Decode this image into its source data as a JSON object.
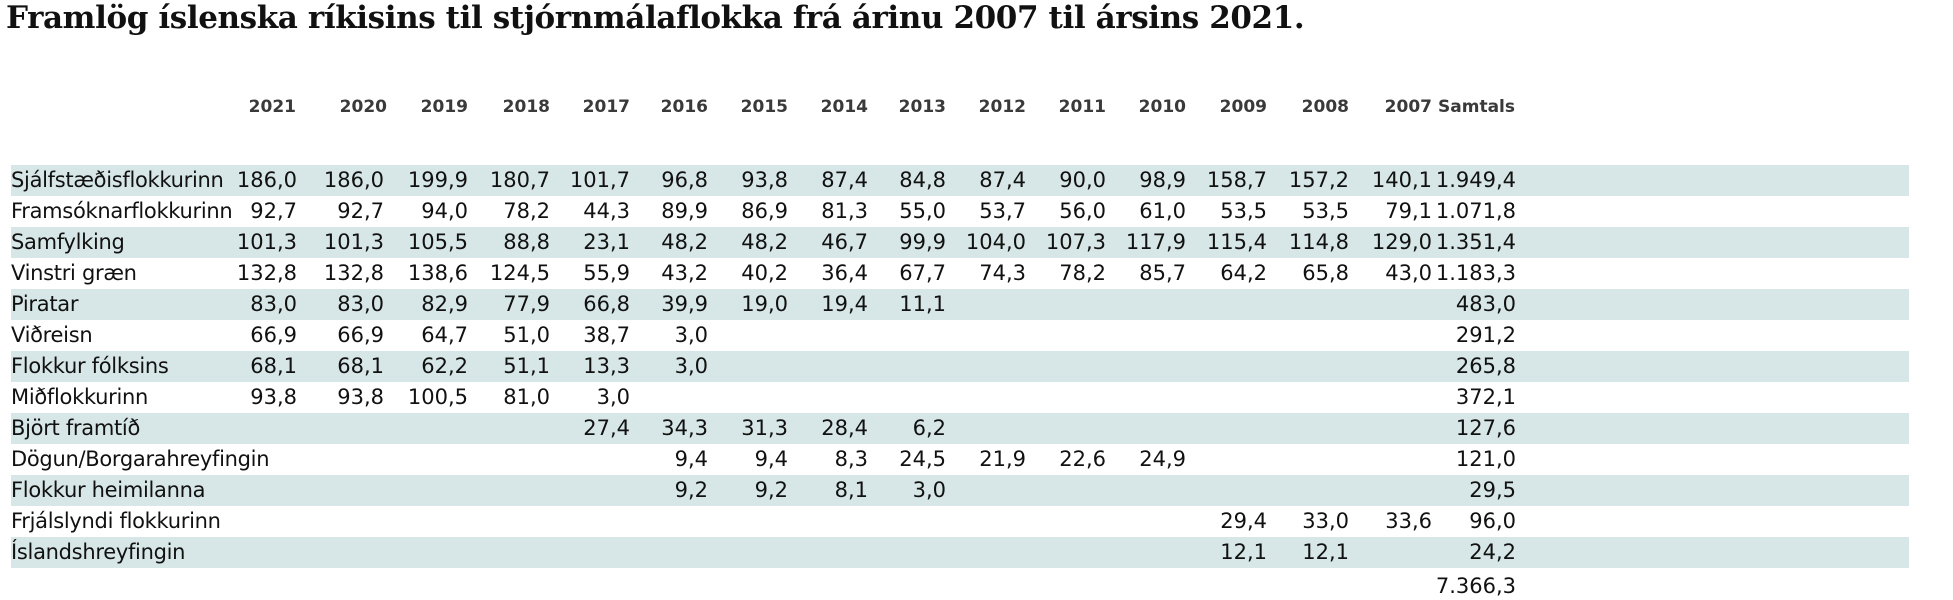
{
  "chart_data": {
    "type": "table",
    "title": "Framlög íslenska ríkisins til stjórnmálaflokka frá árinu 2007 til ársins 2021.",
    "columns": [
      "2021",
      "2020",
      "2019",
      "2018",
      "2017",
      "2016",
      "2015",
      "2014",
      "2013",
      "2012",
      "2011",
      "2010",
      "2009",
      "2008",
      "2007",
      "Samtals"
    ],
    "rows": [
      {
        "name": "Sjálfstæðisflokkurinn",
        "values": [
          "186,0",
          "186,0",
          "199,9",
          "180,7",
          "101,7",
          "96,8",
          "93,8",
          "87,4",
          "84,8",
          "87,4",
          "90,0",
          "98,9",
          "158,7",
          "157,2",
          "140,1",
          "1.949,4"
        ]
      },
      {
        "name": "Framsóknarflokkurinn",
        "values": [
          "92,7",
          "92,7",
          "94,0",
          "78,2",
          "44,3",
          "89,9",
          "86,9",
          "81,3",
          "55,0",
          "53,7",
          "56,0",
          "61,0",
          "53,5",
          "53,5",
          "79,1",
          "1.071,8"
        ]
      },
      {
        "name": "Samfylking",
        "values": [
          "101,3",
          "101,3",
          "105,5",
          "88,8",
          "23,1",
          "48,2",
          "48,2",
          "46,7",
          "99,9",
          "104,0",
          "107,3",
          "117,9",
          "115,4",
          "114,8",
          "129,0",
          "1.351,4"
        ]
      },
      {
        "name": "Vinstri græn",
        "values": [
          "132,8",
          "132,8",
          "138,6",
          "124,5",
          "55,9",
          "43,2",
          "40,2",
          "36,4",
          "67,7",
          "74,3",
          "78,2",
          "85,7",
          "64,2",
          "65,8",
          "43,0",
          "1.183,3"
        ]
      },
      {
        "name": "Piratar",
        "values": [
          "83,0",
          "83,0",
          "82,9",
          "77,9",
          "66,8",
          "39,9",
          "19,0",
          "19,4",
          "11,1",
          "",
          "",
          "",
          "",
          "",
          "",
          "483,0"
        ]
      },
      {
        "name": "Viðreisn",
        "values": [
          "66,9",
          "66,9",
          "64,7",
          "51,0",
          "38,7",
          "3,0",
          "",
          "",
          "",
          "",
          "",
          "",
          "",
          "",
          "",
          "291,2"
        ]
      },
      {
        "name": "Flokkur fólksins",
        "values": [
          "68,1",
          "68,1",
          "62,2",
          "51,1",
          "13,3",
          "3,0",
          "",
          "",
          "",
          "",
          "",
          "",
          "",
          "",
          "",
          "265,8"
        ]
      },
      {
        "name": "Miðflokkurinn",
        "values": [
          "93,8",
          "93,8",
          "100,5",
          "81,0",
          "3,0",
          "",
          "",
          "",
          "",
          "",
          "",
          "",
          "",
          "",
          "",
          "372,1"
        ]
      },
      {
        "name": "Björt framtíð",
        "values": [
          "",
          "",
          "",
          "",
          "27,4",
          "34,3",
          "31,3",
          "28,4",
          "6,2",
          "",
          "",
          "",
          "",
          "",
          "",
          "127,6"
        ]
      },
      {
        "name": "Dögun/Borgarahreyfingin",
        "values": [
          "",
          "",
          "",
          "",
          "",
          "9,4",
          "9,4",
          "8,3",
          "24,5",
          "21,9",
          "22,6",
          "24,9",
          "",
          "",
          "",
          "121,0"
        ]
      },
      {
        "name": "Flokkur heimilanna",
        "values": [
          "",
          "",
          "",
          "",
          "",
          "9,2",
          "9,2",
          "8,1",
          "3,0",
          "",
          "",
          "",
          "",
          "",
          "",
          "29,5"
        ]
      },
      {
        "name": "Frjálslyndi flokkurinn",
        "values": [
          "",
          "",
          "",
          "",
          "",
          "",
          "",
          "",
          "",
          "",
          "",
          "",
          "29,4",
          "33,0",
          "33,6",
          "96,0"
        ]
      },
      {
        "name": "Íslandshreyfingin",
        "values": [
          "",
          "",
          "",
          "",
          "",
          "",
          "",
          "",
          "",
          "",
          "",
          "",
          "12,1",
          "12,1",
          "",
          "24,2"
        ]
      }
    ],
    "grand_total": "7.366,3",
    "row_shading": "alternating",
    "shade_color": "#d7e6e6"
  }
}
